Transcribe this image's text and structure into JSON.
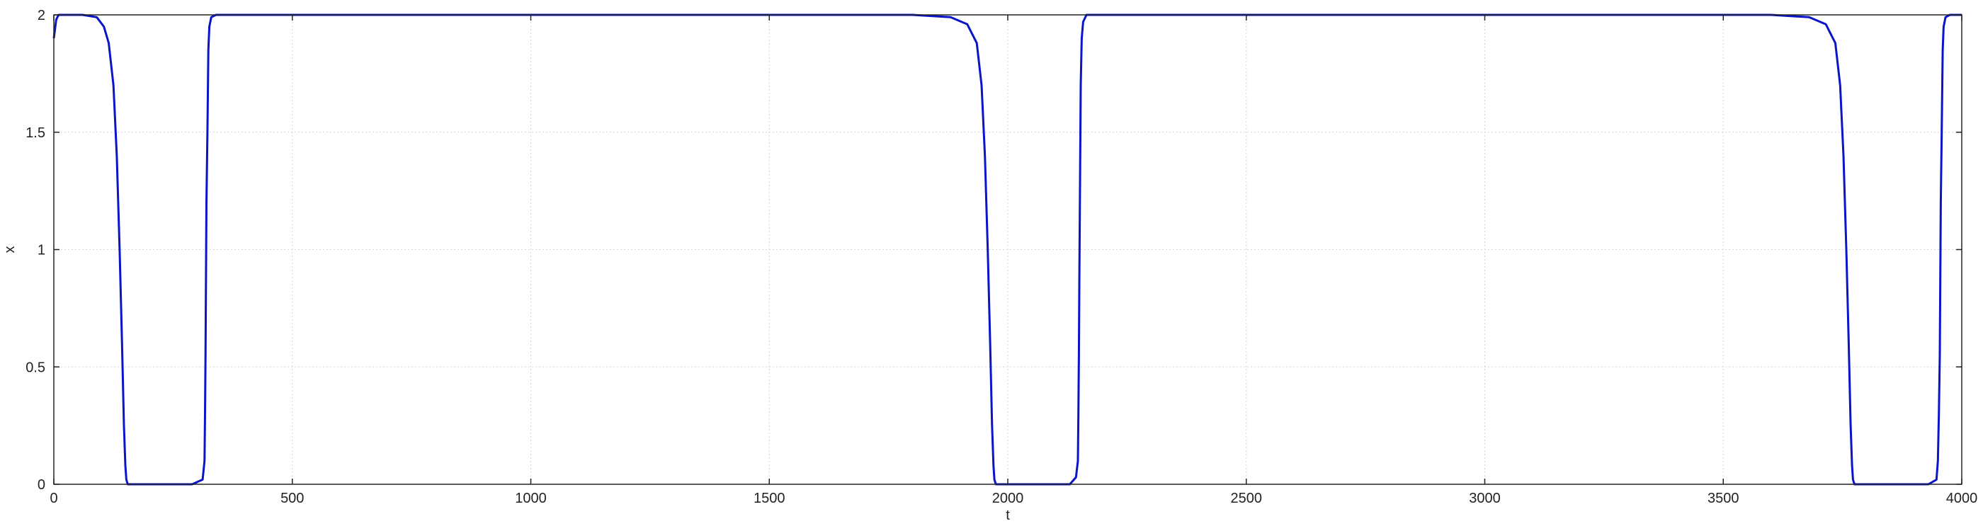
{
  "chart_data": {
    "type": "line",
    "xlabel": "t",
    "ylabel": "x",
    "xlim": [
      0,
      4000
    ],
    "ylim": [
      0,
      2
    ],
    "xticks": [
      0,
      500,
      1000,
      1500,
      2000,
      2500,
      3000,
      3500,
      4000
    ],
    "yticks": [
      0,
      0.5,
      1,
      1.5,
      2
    ],
    "grid": true,
    "legend": "none",
    "series": [
      {
        "color": "#0a14c8",
        "x": [
          0,
          5,
          10,
          60,
          90,
          105,
          115,
          125,
          132,
          138,
          143,
          147,
          150,
          152,
          155,
          175,
          290,
          312,
          316,
          317,
          318,
          320,
          322,
          324,
          326,
          330,
          340,
          400,
          1000,
          1800,
          1880,
          1915,
          1935,
          1945,
          1952,
          1958,
          1963,
          1967,
          1970,
          1972,
          1975,
          1990,
          2130,
          2143,
          2147,
          2148,
          2149,
          2150,
          2152,
          2153,
          2155,
          2158,
          2165,
          2200,
          3000,
          3600,
          3680,
          3715,
          3735,
          3745,
          3752,
          3758,
          3763,
          3767,
          3770,
          3772,
          3775,
          3790,
          3930,
          3947,
          3950,
          3952,
          3954,
          3956,
          3958,
          3960,
          3962,
          3966,
          3975,
          4000
        ],
        "y": [
          1.9,
          1.98,
          2.0,
          2.0,
          1.99,
          1.95,
          1.88,
          1.7,
          1.4,
          1.0,
          0.6,
          0.25,
          0.08,
          0.02,
          0.0,
          0.0,
          0.0,
          0.02,
          0.1,
          0.3,
          0.55,
          1.2,
          1.5,
          1.85,
          1.95,
          1.99,
          2.0,
          2.0,
          2.0,
          2.0,
          1.99,
          1.96,
          1.88,
          1.7,
          1.4,
          1.0,
          0.6,
          0.25,
          0.08,
          0.02,
          0.0,
          0.0,
          0.0,
          0.03,
          0.1,
          0.3,
          0.55,
          0.85,
          1.45,
          1.7,
          1.9,
          1.97,
          2.0,
          2.0,
          2.0,
          2.0,
          1.99,
          1.96,
          1.88,
          1.7,
          1.4,
          1.0,
          0.6,
          0.25,
          0.08,
          0.02,
          0.0,
          0.0,
          0.0,
          0.02,
          0.1,
          0.3,
          0.55,
          1.2,
          1.5,
          1.85,
          1.95,
          1.99,
          2.0,
          2.0
        ]
      }
    ]
  }
}
